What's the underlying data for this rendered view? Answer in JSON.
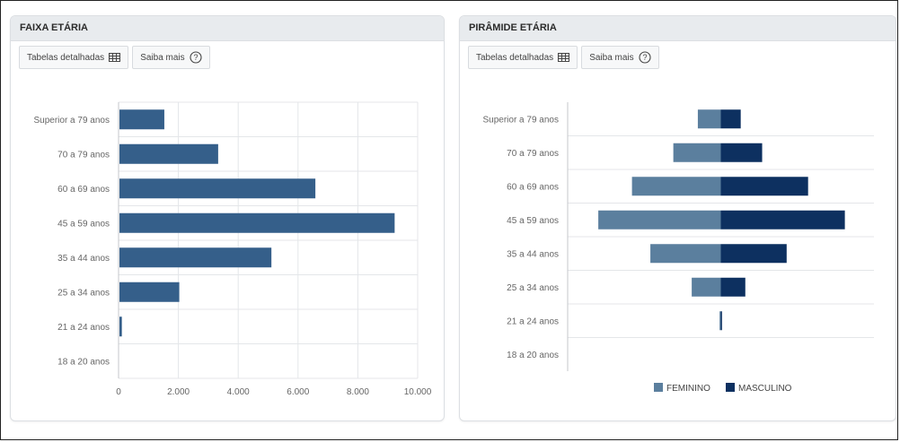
{
  "colors": {
    "bar": "#355f8a",
    "feminino": "#5b7f9e",
    "masculino": "#0d3060",
    "grid": "#e4e6e9",
    "axis": "#c4c7cb",
    "tick_text": "#666666"
  },
  "left_panel": {
    "title": "FAIXA ETÁRIA",
    "btn_tables": "Tabelas detalhadas",
    "btn_tables_icon": "table-icon",
    "btn_more": "Saiba mais",
    "btn_more_icon": "help-circle-icon"
  },
  "right_panel": {
    "title": "PIRÂMIDE ETÁRIA",
    "btn_tables": "Tabelas detalhadas",
    "btn_tables_icon": "table-icon",
    "btn_more": "Saiba mais",
    "btn_more_icon": "help-circle-icon"
  },
  "chart_data": [
    {
      "type": "bar",
      "orientation": "horizontal",
      "categories": [
        "Superior a 79 anos",
        "70 a 79 anos",
        "60 a 69 anos",
        "45 a 59 anos",
        "35 a 44 anos",
        "25 a 34 anos",
        "21 a 24 anos",
        "18 a 20 anos"
      ],
      "values": [
        1500,
        3300,
        6550,
        9200,
        5080,
        2000,
        80,
        0
      ],
      "xlim": [
        0,
        10000
      ],
      "x_ticks": [
        0,
        2000,
        4000,
        6000,
        8000,
        10000
      ],
      "x_tick_labels": [
        "0",
        "2.000",
        "4.000",
        "6.000",
        "8.000",
        "10.000"
      ],
      "grid": true
    },
    {
      "type": "bar",
      "orientation": "horizontal-diverging",
      "categories": [
        "Superior a 79 anos",
        "70 a 79 anos",
        "60 a 69 anos",
        "45 a 59 anos",
        "35 a 44 anos",
        "25 a 34 anos",
        "21 a 24 anos",
        "18 a 20 anos"
      ],
      "series": [
        {
          "name": "FEMININO",
          "values": [
            750,
            1550,
            2900,
            4000,
            2300,
            950,
            40,
            0
          ]
        },
        {
          "name": "MASCULINO",
          "values": [
            650,
            1350,
            2850,
            4050,
            2150,
            800,
            40,
            0
          ]
        }
      ],
      "xlim": [
        -5000,
        5000
      ],
      "legend": "bottom",
      "grid": true
    }
  ]
}
